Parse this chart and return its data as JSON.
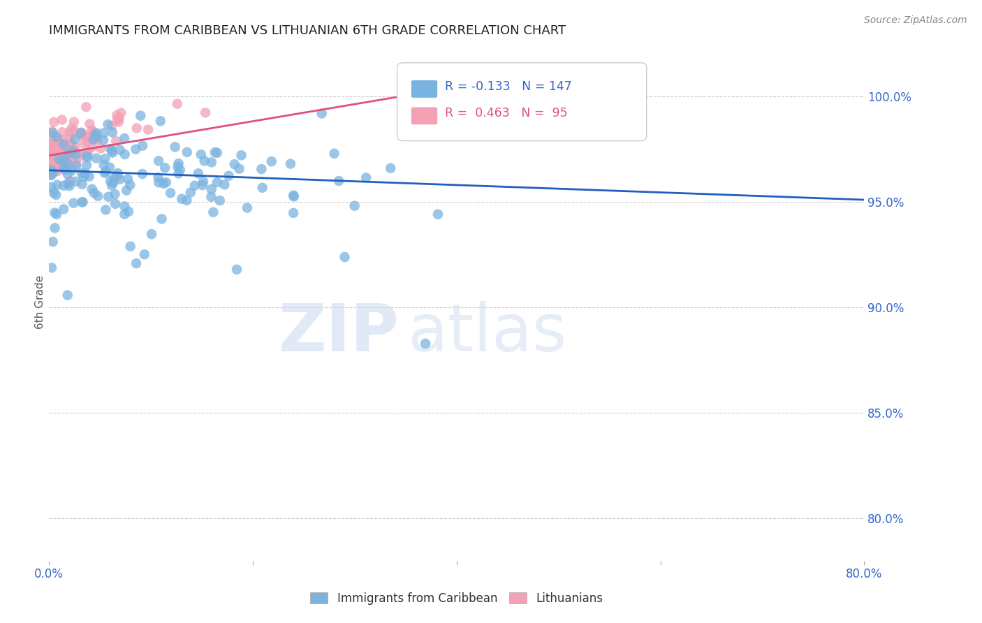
{
  "title": "IMMIGRANTS FROM CARIBBEAN VS LITHUANIAN 6TH GRADE CORRELATION CHART",
  "source": "Source: ZipAtlas.com",
  "ylabel": "6th Grade",
  "right_yticklabels": [
    "100.0%",
    "95.0%",
    "90.0%",
    "85.0%",
    "80.0%"
  ],
  "right_yticks_vals": [
    1.0,
    0.95,
    0.9,
    0.85,
    0.8
  ],
  "xlim": [
    0.0,
    0.8
  ],
  "ylim": [
    0.78,
    1.025
  ],
  "blue_R": -0.133,
  "blue_N": 147,
  "pink_R": 0.463,
  "pink_N": 95,
  "blue_color": "#7ab3e0",
  "pink_color": "#f4a0b5",
  "blue_line_color": "#2060c0",
  "pink_line_color": "#e0507a",
  "legend_blue_label": "Immigrants from Caribbean",
  "legend_pink_label": "Lithuanians",
  "watermark_zip": "ZIP",
  "watermark_atlas": "atlas",
  "grid_color": "#cccccc",
  "title_color": "#222222",
  "source_color": "#888888",
  "tick_color": "#3366cc",
  "ylabel_color": "#555555"
}
